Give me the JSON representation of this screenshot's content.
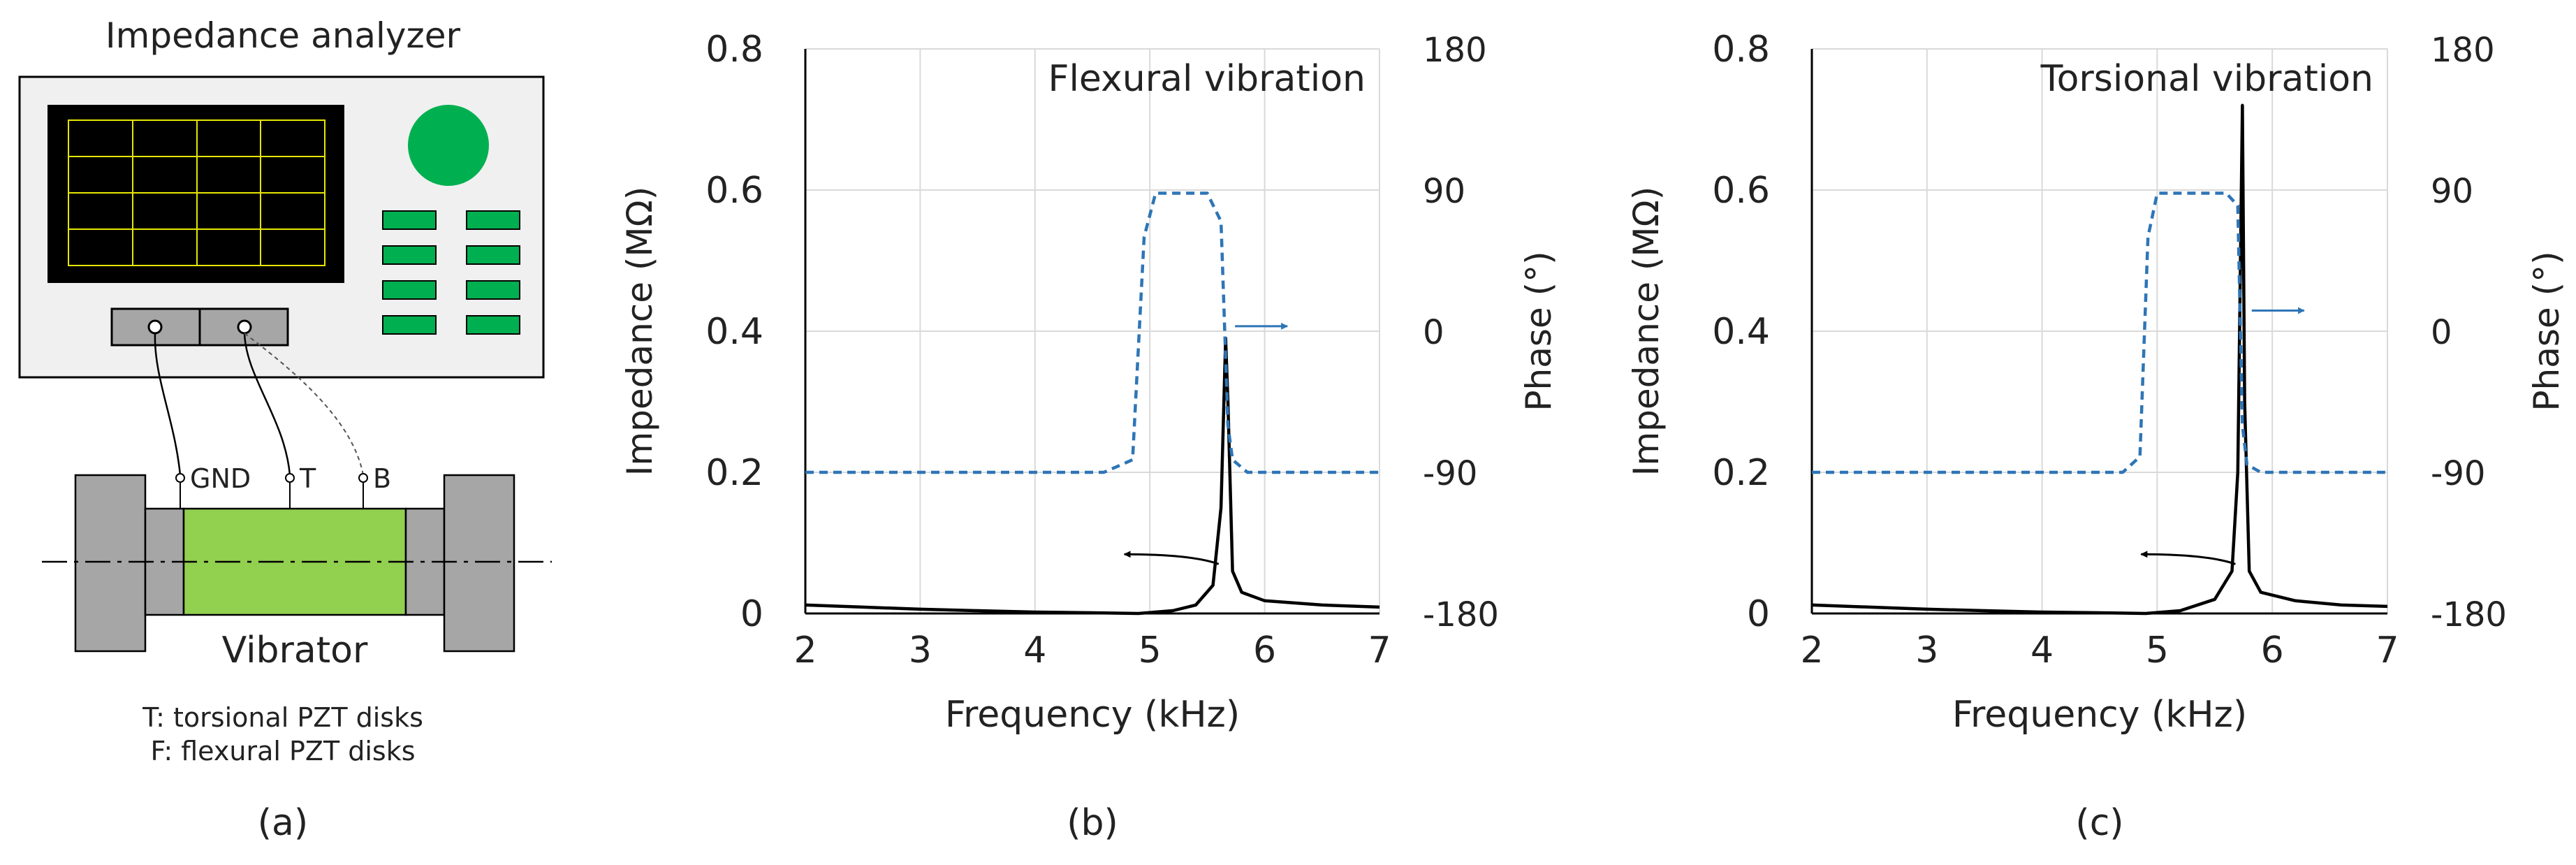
{
  "panel_a": {
    "title": "Impedance analyzer",
    "terminals": [
      "GND",
      "T",
      "B"
    ],
    "vibrator_label": "Vibrator",
    "legend_line1": "T: torsional PZT disks",
    "legend_line2": "F: flexural PZT disks",
    "caption": "(a)",
    "colors": {
      "screen": "#000000",
      "grid": "#e6e600",
      "knob": "#00b050",
      "buttons": "#00b050",
      "body": "#f0f0f0",
      "vibrator": "#92d050",
      "metal": "#a6a6a6"
    }
  },
  "chart_data": [
    {
      "type": "line",
      "panel": "(b)",
      "annotation": "Flexural vibration",
      "xlabel": "Frequency (kHz)",
      "ylabel": "Impedance (MΩ)",
      "y2label": "Phase (°)",
      "xlim": [
        2,
        7
      ],
      "ylim": [
        0,
        0.8
      ],
      "y2lim": [
        -180,
        180
      ],
      "xticks": [
        "2",
        "3",
        "4",
        "5",
        "6",
        "7"
      ],
      "yticks": [
        "0",
        "0.2",
        "0.4",
        "0.6",
        "0.8"
      ],
      "y2ticks": [
        "-180",
        "-90",
        "0",
        "90",
        "180"
      ],
      "series": [
        {
          "name": "Impedance",
          "axis": "left",
          "style": "solid",
          "color": "#000000",
          "x": [
            2.0,
            2.5,
            3.0,
            3.5,
            4.0,
            4.5,
            4.9,
            5.2,
            5.4,
            5.55,
            5.62,
            5.66,
            5.68,
            5.72,
            5.8,
            6.0,
            6.5,
            7.0
          ],
          "y": [
            0.012,
            0.009,
            0.006,
            0.004,
            0.002,
            0.001,
            0.0,
            0.004,
            0.012,
            0.04,
            0.15,
            0.39,
            0.3,
            0.06,
            0.03,
            0.018,
            0.012,
            0.009
          ]
        },
        {
          "name": "Phase",
          "axis": "right",
          "style": "dashed",
          "color": "#2e75b6",
          "x": [
            2.0,
            4.6,
            4.85,
            4.95,
            5.05,
            5.5,
            5.62,
            5.68,
            5.72,
            5.85,
            7.0
          ],
          "y": [
            -90,
            -90,
            -82,
            60,
            88,
            88,
            70,
            -60,
            -82,
            -90,
            -90
          ]
        }
      ],
      "arrows": [
        {
          "series": "Phase",
          "direction": "right"
        },
        {
          "series": "Impedance",
          "direction": "left"
        }
      ]
    },
    {
      "type": "line",
      "panel": "(c)",
      "annotation": "Torsional vibration",
      "xlabel": "Frequency (kHz)",
      "ylabel": "Impedance (MΩ)",
      "y2label": "Phase (°)",
      "xlim": [
        2,
        7
      ],
      "ylim": [
        0,
        0.8
      ],
      "y2lim": [
        -180,
        180
      ],
      "xticks": [
        "2",
        "3",
        "4",
        "5",
        "6",
        "7"
      ],
      "yticks": [
        "0",
        "0.2",
        "0.4",
        "0.6",
        "0.8"
      ],
      "y2ticks": [
        "-180",
        "-90",
        "0",
        "90",
        "180"
      ],
      "series": [
        {
          "name": "Impedance",
          "axis": "left",
          "style": "solid",
          "color": "#000000",
          "x": [
            2.0,
            2.5,
            3.0,
            3.5,
            4.0,
            4.5,
            4.9,
            5.2,
            5.5,
            5.65,
            5.7,
            5.74,
            5.76,
            5.8,
            5.9,
            6.2,
            6.6,
            7.0
          ],
          "y": [
            0.012,
            0.009,
            0.006,
            0.004,
            0.002,
            0.001,
            0.0,
            0.004,
            0.02,
            0.06,
            0.2,
            0.72,
            0.3,
            0.06,
            0.03,
            0.018,
            0.012,
            0.01
          ]
        },
        {
          "name": "Phase",
          "axis": "right",
          "style": "dashed",
          "color": "#2e75b6",
          "x": [
            2.0,
            4.7,
            4.85,
            4.92,
            5.0,
            5.6,
            5.7,
            5.74,
            5.78,
            5.9,
            7.0
          ],
          "y": [
            -90,
            -90,
            -80,
            60,
            88,
            88,
            80,
            -60,
            -85,
            -90,
            -90
          ]
        }
      ],
      "arrows": [
        {
          "series": "Phase",
          "direction": "right"
        },
        {
          "series": "Impedance",
          "direction": "left"
        }
      ]
    }
  ]
}
